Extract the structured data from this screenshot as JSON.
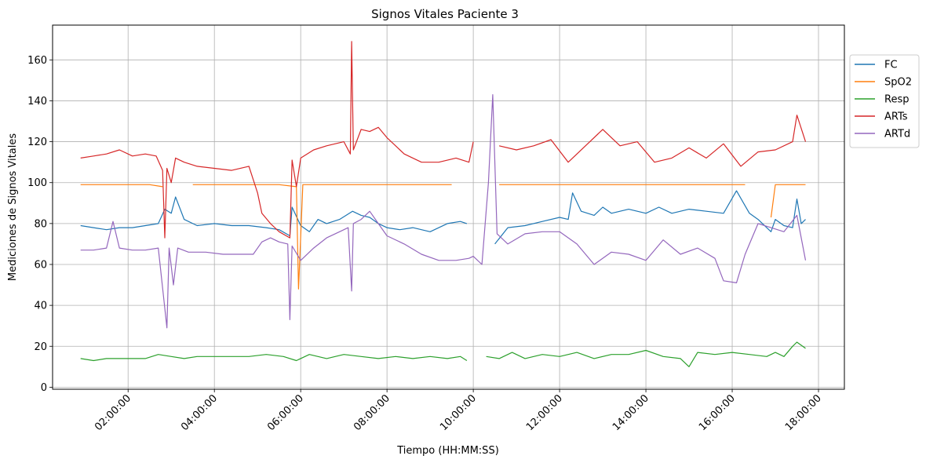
{
  "chart_data": {
    "type": "line",
    "title": "Signos Vitales Paciente 3",
    "xlabel": "Tiempo (HH:MM:SS)",
    "ylabel": "Mediciones de Signos Vitales",
    "x_range_hours": [
      0.25,
      18.6
    ],
    "ylim": [
      -1,
      177
    ],
    "grid": true,
    "legend_position": "right",
    "x_ticks": [
      {
        "hour": 2,
        "label": "02:00:00"
      },
      {
        "hour": 4,
        "label": "04:00:00"
      },
      {
        "hour": 6,
        "label": "06:00:00"
      },
      {
        "hour": 8,
        "label": "08:00:00"
      },
      {
        "hour": 10,
        "label": "10:00:00"
      },
      {
        "hour": 12,
        "label": "12:00:00"
      },
      {
        "hour": 14,
        "label": "14:00:00"
      },
      {
        "hour": 16,
        "label": "16:00:00"
      },
      {
        "hour": 18,
        "label": "18:00:00"
      }
    ],
    "y_ticks": [
      0,
      20,
      40,
      60,
      80,
      100,
      120,
      140,
      160
    ],
    "series": [
      {
        "name": "FC",
        "color": "#1f77b4",
        "points": [
          [
            0.9,
            79
          ],
          [
            1.2,
            78
          ],
          [
            1.5,
            77
          ],
          [
            1.8,
            78
          ],
          [
            2.1,
            78
          ],
          [
            2.4,
            79
          ],
          [
            2.7,
            80
          ],
          [
            2.85,
            87
          ],
          [
            3.0,
            85
          ],
          [
            3.1,
            93
          ],
          [
            3.3,
            82
          ],
          [
            3.6,
            79
          ],
          [
            4.0,
            80
          ],
          [
            4.4,
            79
          ],
          [
            4.8,
            79
          ],
          [
            5.2,
            78
          ],
          [
            5.5,
            77
          ],
          [
            5.75,
            74
          ],
          [
            5.8,
            88
          ],
          [
            6.0,
            79
          ],
          [
            6.2,
            76
          ],
          [
            6.4,
            82
          ],
          [
            6.6,
            80
          ],
          [
            6.9,
            82
          ],
          [
            7.2,
            86
          ],
          [
            7.4,
            84
          ],
          [
            7.6,
            83
          ],
          [
            7.8,
            80
          ],
          [
            8.0,
            78
          ],
          [
            8.3,
            77
          ],
          [
            8.6,
            78
          ],
          [
            9.0,
            76
          ],
          [
            9.4,
            80
          ],
          [
            9.7,
            81
          ],
          [
            9.85,
            80
          ],
          [
            9.86,
            null
          ],
          [
            10.5,
            70
          ],
          [
            10.8,
            78
          ],
          [
            11.2,
            79
          ],
          [
            11.6,
            81
          ],
          [
            12.0,
            83
          ],
          [
            12.2,
            82
          ],
          [
            12.3,
            95
          ],
          [
            12.5,
            86
          ],
          [
            12.8,
            84
          ],
          [
            13.0,
            88
          ],
          [
            13.2,
            85
          ],
          [
            13.6,
            87
          ],
          [
            14.0,
            85
          ],
          [
            14.3,
            88
          ],
          [
            14.6,
            85
          ],
          [
            15.0,
            87
          ],
          [
            15.4,
            86
          ],
          [
            15.8,
            85
          ],
          [
            16.1,
            96
          ],
          [
            16.4,
            85
          ],
          [
            16.6,
            82
          ],
          [
            16.9,
            76
          ],
          [
            17.0,
            82
          ],
          [
            17.2,
            79
          ],
          [
            17.4,
            78
          ],
          [
            17.5,
            92
          ],
          [
            17.6,
            80
          ],
          [
            17.7,
            82
          ]
        ]
      },
      {
        "name": "SpO2",
        "color": "#ff7f0e",
        "points": [
          [
            0.9,
            99
          ],
          [
            1.5,
            99
          ],
          [
            2.0,
            99
          ],
          [
            2.5,
            99
          ],
          [
            2.8,
            98
          ],
          [
            2.85,
            null
          ],
          [
            3.5,
            99
          ],
          [
            4.0,
            99
          ],
          [
            4.5,
            99
          ],
          [
            5.0,
            99
          ],
          [
            5.5,
            99
          ],
          [
            5.9,
            98
          ],
          [
            5.95,
            48
          ],
          [
            6.05,
            99
          ],
          [
            6.6,
            99
          ],
          [
            7.0,
            99
          ],
          [
            7.6,
            99
          ],
          [
            8.0,
            99
          ],
          [
            8.6,
            99
          ],
          [
            9.0,
            99
          ],
          [
            9.5,
            99
          ],
          [
            9.51,
            null
          ],
          [
            10.6,
            99
          ],
          [
            11.2,
            99
          ],
          [
            11.6,
            99
          ],
          [
            12.0,
            99
          ],
          [
            12.5,
            99
          ],
          [
            13.0,
            99
          ],
          [
            13.6,
            99
          ],
          [
            14.0,
            99
          ],
          [
            14.6,
            99
          ],
          [
            15.0,
            99
          ],
          [
            15.6,
            99
          ],
          [
            16.0,
            99
          ],
          [
            16.3,
            99
          ],
          [
            16.31,
            null
          ],
          [
            16.9,
            83
          ],
          [
            17.0,
            99
          ],
          [
            17.4,
            99
          ],
          [
            17.7,
            99
          ]
        ]
      },
      {
        "name": "Resp",
        "color": "#2ca02c",
        "points": [
          [
            0.9,
            14
          ],
          [
            1.2,
            13
          ],
          [
            1.5,
            14
          ],
          [
            1.8,
            14
          ],
          [
            2.1,
            14
          ],
          [
            2.4,
            14
          ],
          [
            2.7,
            16
          ],
          [
            3.0,
            15
          ],
          [
            3.3,
            14
          ],
          [
            3.6,
            15
          ],
          [
            4.0,
            15
          ],
          [
            4.4,
            15
          ],
          [
            4.8,
            15
          ],
          [
            5.2,
            16
          ],
          [
            5.6,
            15
          ],
          [
            5.9,
            13
          ],
          [
            6.2,
            16
          ],
          [
            6.6,
            14
          ],
          [
            7.0,
            16
          ],
          [
            7.4,
            15
          ],
          [
            7.8,
            14
          ],
          [
            8.2,
            15
          ],
          [
            8.6,
            14
          ],
          [
            9.0,
            15
          ],
          [
            9.4,
            14
          ],
          [
            9.7,
            15
          ],
          [
            9.85,
            13
          ],
          [
            9.86,
            null
          ],
          [
            10.3,
            15
          ],
          [
            10.6,
            14
          ],
          [
            10.9,
            17
          ],
          [
            11.2,
            14
          ],
          [
            11.6,
            16
          ],
          [
            12.0,
            15
          ],
          [
            12.4,
            17
          ],
          [
            12.8,
            14
          ],
          [
            13.2,
            16
          ],
          [
            13.6,
            16
          ],
          [
            14.0,
            18
          ],
          [
            14.4,
            15
          ],
          [
            14.8,
            14
          ],
          [
            15.0,
            10
          ],
          [
            15.2,
            17
          ],
          [
            15.6,
            16
          ],
          [
            16.0,
            17
          ],
          [
            16.4,
            16
          ],
          [
            16.8,
            15
          ],
          [
            17.0,
            17
          ],
          [
            17.2,
            15
          ],
          [
            17.4,
            20
          ],
          [
            17.5,
            22
          ],
          [
            17.7,
            19
          ]
        ]
      },
      {
        "name": "ARTs",
        "color": "#d62728",
        "points": [
          [
            0.9,
            112
          ],
          [
            1.2,
            113
          ],
          [
            1.5,
            114
          ],
          [
            1.8,
            116
          ],
          [
            2.1,
            113
          ],
          [
            2.4,
            114
          ],
          [
            2.65,
            113
          ],
          [
            2.8,
            106
          ],
          [
            2.85,
            73
          ],
          [
            2.9,
            107
          ],
          [
            3.0,
            100
          ],
          [
            3.1,
            112
          ],
          [
            3.3,
            110
          ],
          [
            3.6,
            108
          ],
          [
            4.0,
            107
          ],
          [
            4.4,
            106
          ],
          [
            4.8,
            108
          ],
          [
            5.0,
            95
          ],
          [
            5.1,
            85
          ],
          [
            5.3,
            80
          ],
          [
            5.5,
            76
          ],
          [
            5.75,
            73
          ],
          [
            5.8,
            111
          ],
          [
            5.9,
            98
          ],
          [
            6.0,
            112
          ],
          [
            6.3,
            116
          ],
          [
            6.6,
            118
          ],
          [
            7.0,
            120
          ],
          [
            7.15,
            114
          ],
          [
            7.18,
            169
          ],
          [
            7.22,
            116
          ],
          [
            7.4,
            126
          ],
          [
            7.6,
            125
          ],
          [
            7.8,
            127
          ],
          [
            8.0,
            122
          ],
          [
            8.4,
            114
          ],
          [
            8.8,
            110
          ],
          [
            9.2,
            110
          ],
          [
            9.6,
            112
          ],
          [
            9.9,
            110
          ],
          [
            10.0,
            120
          ],
          [
            10.1,
            null
          ],
          [
            10.6,
            118
          ],
          [
            11.0,
            116
          ],
          [
            11.4,
            118
          ],
          [
            11.8,
            121
          ],
          [
            12.2,
            110
          ],
          [
            12.6,
            118
          ],
          [
            13.0,
            126
          ],
          [
            13.4,
            118
          ],
          [
            13.8,
            120
          ],
          [
            14.2,
            110
          ],
          [
            14.6,
            112
          ],
          [
            15.0,
            117
          ],
          [
            15.4,
            112
          ],
          [
            15.8,
            119
          ],
          [
            16.2,
            108
          ],
          [
            16.6,
            115
          ],
          [
            17.0,
            116
          ],
          [
            17.4,
            120
          ],
          [
            17.5,
            133
          ],
          [
            17.7,
            120
          ]
        ]
      },
      {
        "name": "ARTd",
        "color": "#9467bd",
        "points": [
          [
            0.9,
            67
          ],
          [
            1.2,
            67
          ],
          [
            1.5,
            68
          ],
          [
            1.65,
            81
          ],
          [
            1.8,
            68
          ],
          [
            2.1,
            67
          ],
          [
            2.4,
            67
          ],
          [
            2.7,
            68
          ],
          [
            2.9,
            29
          ],
          [
            2.95,
            68
          ],
          [
            3.05,
            50
          ],
          [
            3.15,
            68
          ],
          [
            3.4,
            66
          ],
          [
            3.8,
            66
          ],
          [
            4.2,
            65
          ],
          [
            4.6,
            65
          ],
          [
            4.9,
            65
          ],
          [
            5.1,
            71
          ],
          [
            5.3,
            73
          ],
          [
            5.5,
            71
          ],
          [
            5.7,
            70
          ],
          [
            5.75,
            33
          ],
          [
            5.8,
            69
          ],
          [
            6.0,
            62
          ],
          [
            6.3,
            68
          ],
          [
            6.6,
            73
          ],
          [
            6.9,
            76
          ],
          [
            7.1,
            78
          ],
          [
            7.18,
            47
          ],
          [
            7.22,
            80
          ],
          [
            7.4,
            82
          ],
          [
            7.6,
            86
          ],
          [
            7.8,
            80
          ],
          [
            8.0,
            74
          ],
          [
            8.4,
            70
          ],
          [
            8.8,
            65
          ],
          [
            9.2,
            62
          ],
          [
            9.6,
            62
          ],
          [
            9.9,
            63
          ],
          [
            10.0,
            64
          ],
          [
            10.2,
            60
          ],
          [
            10.35,
            100
          ],
          [
            10.45,
            143
          ],
          [
            10.55,
            75
          ],
          [
            10.8,
            70
          ],
          [
            11.2,
            75
          ],
          [
            11.6,
            76
          ],
          [
            12.0,
            76
          ],
          [
            12.4,
            70
          ],
          [
            12.8,
            60
          ],
          [
            13.2,
            66
          ],
          [
            13.6,
            65
          ],
          [
            14.0,
            62
          ],
          [
            14.4,
            72
          ],
          [
            14.8,
            65
          ],
          [
            15.2,
            68
          ],
          [
            15.6,
            63
          ],
          [
            15.8,
            52
          ],
          [
            16.1,
            51
          ],
          [
            16.3,
            65
          ],
          [
            16.6,
            80
          ],
          [
            16.9,
            78
          ],
          [
            17.2,
            76
          ],
          [
            17.5,
            84
          ],
          [
            17.7,
            62
          ]
        ]
      }
    ]
  }
}
